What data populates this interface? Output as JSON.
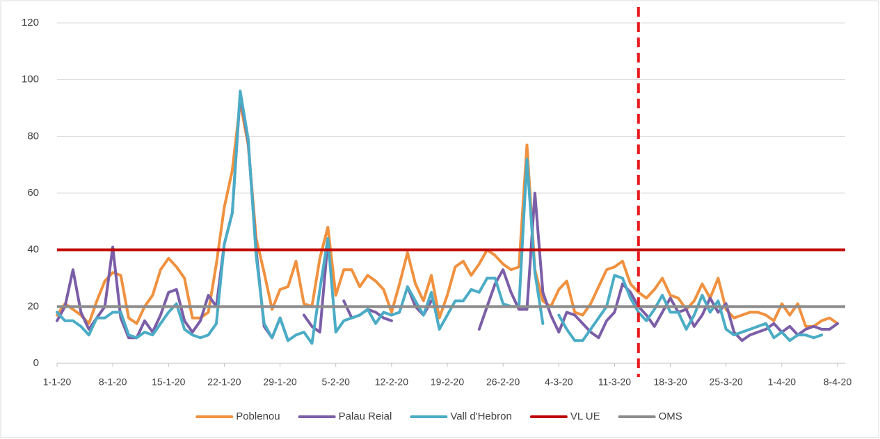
{
  "chart_data": {
    "type": "line",
    "categories": [
      "1-1-20",
      null,
      null,
      null,
      null,
      null,
      null,
      "8-1-20",
      null,
      null,
      null,
      null,
      null,
      null,
      "15-1-20",
      null,
      null,
      null,
      null,
      null,
      null,
      "22-1-20",
      null,
      null,
      null,
      null,
      null,
      null,
      "29-1-20",
      null,
      null,
      null,
      null,
      null,
      null,
      "5-2-20",
      null,
      null,
      null,
      null,
      null,
      null,
      "12-2-20",
      null,
      null,
      null,
      null,
      null,
      null,
      "19-2-20",
      null,
      null,
      null,
      null,
      null,
      null,
      "26-2-20",
      null,
      null,
      null,
      null,
      null,
      null,
      "4-3-20",
      null,
      null,
      null,
      null,
      null,
      null,
      "11-3-20",
      null,
      null,
      null,
      null,
      null,
      null,
      "18-3-20",
      null,
      null,
      null,
      null,
      null,
      null,
      "25-3-20",
      null,
      null,
      null,
      null,
      null,
      null,
      "1-4-20",
      null,
      null,
      null,
      null,
      null,
      null,
      "8-4-20"
    ],
    "series": [
      {
        "name": "Poblenou",
        "color": "#f0913f",
        "values": [
          17,
          21,
          19,
          17,
          14,
          22,
          29,
          32,
          31,
          16,
          14,
          20,
          24,
          33,
          37,
          34,
          30,
          16,
          16,
          18,
          35,
          55,
          68,
          92,
          77,
          44,
          32,
          19,
          26,
          27,
          36,
          21,
          20,
          37,
          48,
          24,
          33,
          33,
          27,
          31,
          29,
          26,
          18,
          28,
          39,
          28,
          22,
          31,
          16,
          24,
          34,
          36,
          31,
          35,
          40,
          38,
          35,
          33,
          34,
          77,
          33,
          22,
          20,
          26,
          29,
          18,
          17,
          21,
          27,
          33,
          34,
          36,
          28,
          25,
          23,
          26,
          30,
          24,
          23,
          19,
          22,
          28,
          23,
          30,
          19,
          16,
          17,
          18,
          18,
          17,
          15,
          21,
          17,
          21,
          13,
          13,
          15,
          16,
          14
        ]
      },
      {
        "name": "Palau Reial",
        "color": "#7b5ea7",
        "values": [
          15,
          20,
          33,
          18,
          12,
          16,
          20,
          41,
          16,
          9,
          9,
          15,
          11,
          17,
          25,
          26,
          15,
          11,
          15,
          24,
          20,
          42,
          53,
          95,
          78,
          40,
          13,
          9,
          16,
          8,
          null,
          17,
          13,
          11,
          43,
          null,
          22,
          16,
          17,
          19,
          18,
          16,
          15,
          null,
          27,
          20,
          17,
          22,
          null,
          null,
          null,
          null,
          null,
          12,
          20,
          28,
          33,
          25,
          19,
          19,
          60,
          25,
          17,
          11,
          18,
          17,
          14,
          11,
          9,
          15,
          18,
          28,
          25,
          20,
          17,
          13,
          18,
          23,
          18,
          19,
          13,
          17,
          23,
          18,
          21,
          11,
          8,
          10,
          11,
          12,
          14,
          11,
          13,
          10,
          12,
          13,
          12,
          12,
          14
        ]
      },
      {
        "name": "Vall d'Hebron",
        "color": "#4bacc6",
        "values": [
          18,
          15,
          15,
          13,
          10,
          16,
          16,
          18,
          18,
          10,
          9,
          11,
          10,
          14,
          18,
          21,
          12,
          10,
          9,
          10,
          14,
          42,
          53,
          96,
          79,
          38,
          14,
          9,
          16,
          8,
          10,
          11,
          7,
          26,
          44,
          11,
          15,
          16,
          17,
          19,
          14,
          18,
          17,
          18,
          27,
          22,
          17,
          25,
          12,
          17,
          22,
          22,
          26,
          25,
          30,
          30,
          21,
          20,
          20,
          72,
          32,
          14,
          null,
          17,
          12,
          8,
          8,
          12,
          16,
          20,
          31,
          30,
          23,
          18,
          15,
          19,
          24,
          18,
          18,
          12,
          17,
          24,
          18,
          22,
          12,
          10,
          11,
          12,
          13,
          14,
          9,
          11,
          8,
          10,
          10,
          9,
          10,
          null,
          null
        ]
      }
    ],
    "reference_lines": [
      {
        "name": "VL UE",
        "value": 40,
        "color": "#c00000"
      },
      {
        "name": "OMS",
        "value": 20,
        "color": "#8c8c8c"
      }
    ],
    "vertical_line": {
      "category_index": 73,
      "color": "#e8191d",
      "dashed": true
    },
    "ylim": [
      0,
      120
    ],
    "yticks": [
      0,
      20,
      40,
      60,
      80,
      100,
      120
    ],
    "grid": true
  }
}
